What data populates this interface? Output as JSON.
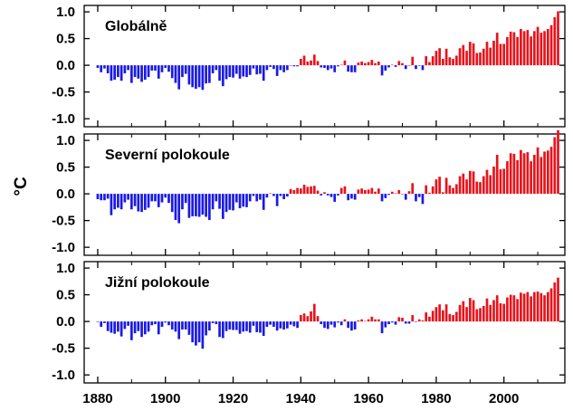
{
  "colors": {
    "positive": "#e8131b",
    "negative": "#1a1ae6",
    "axis": "#000000",
    "background": "#ffffff"
  },
  "shared": {
    "ylabel": "°C",
    "xlim": [
      1876,
      2018
    ],
    "ylim": [
      -1.15,
      1.12
    ],
    "x_ticks": [
      1880,
      1900,
      1920,
      1940,
      1960,
      1980,
      2000
    ],
    "x_tick_labels": [
      "1880",
      "1900",
      "1920",
      "1940",
      "1960",
      "1980",
      "2000"
    ],
    "y_ticks": [
      1.0,
      0.5,
      0.0,
      -0.5,
      -1.0
    ],
    "y_tick_labels": [
      "1.0",
      "0.5",
      "0.0",
      "-0.5",
      "-1.0"
    ]
  },
  "chart_data": [
    {
      "type": "bar",
      "title": "Globálně",
      "xlabel": "",
      "ylabel": "°C",
      "start_year": 1880,
      "values": [
        -0.05,
        -0.13,
        -0.06,
        -0.15,
        -0.29,
        -0.27,
        -0.22,
        -0.29,
        -0.15,
        -0.09,
        -0.33,
        -0.22,
        -0.25,
        -0.31,
        -0.27,
        -0.22,
        -0.1,
        -0.1,
        -0.25,
        -0.13,
        -0.05,
        -0.12,
        -0.24,
        -0.33,
        -0.45,
        -0.22,
        -0.16,
        -0.36,
        -0.41,
        -0.44,
        -0.41,
        -0.46,
        -0.34,
        -0.33,
        -0.15,
        -0.09,
        -0.29,
        -0.39,
        -0.26,
        -0.22,
        -0.23,
        -0.16,
        -0.25,
        -0.21,
        -0.22,
        -0.18,
        -0.06,
        -0.17,
        -0.16,
        -0.29,
        -0.09,
        -0.03,
        -0.07,
        -0.2,
        -0.09,
        -0.13,
        -0.09,
        0.0,
        -0.02,
        -0.02,
        0.12,
        0.18,
        0.07,
        0.09,
        0.2,
        0.08,
        -0.04,
        -0.05,
        -0.09,
        -0.06,
        -0.13,
        -0.02,
        0.01,
        0.09,
        -0.12,
        -0.13,
        -0.13,
        0.05,
        0.07,
        0.04,
        0.06,
        0.1,
        0.04,
        0.07,
        -0.19,
        -0.1,
        -0.04,
        0.01,
        -0.03,
        0.08,
        0.04,
        -0.07,
        0.0,
        0.16,
        -0.07,
        -0.01,
        -0.09,
        0.17,
        0.06,
        0.17,
        0.27,
        0.32,
        0.12,
        0.31,
        0.15,
        0.12,
        0.18,
        0.32,
        0.38,
        0.27,
        0.44,
        0.41,
        0.23,
        0.24,
        0.31,
        0.44,
        0.33,
        0.46,
        0.61,
        0.4,
        0.4,
        0.53,
        0.63,
        0.62,
        0.53,
        0.68,
        0.64,
        0.66,
        0.54,
        0.64,
        0.72,
        0.61,
        0.64,
        0.68,
        0.75,
        0.9,
        1.01
      ]
    },
    {
      "type": "bar",
      "title": "Severní polokoule",
      "xlabel": "",
      "ylabel": "°C",
      "start_year": 1880,
      "values": [
        -0.1,
        -0.12,
        -0.12,
        -0.09,
        -0.4,
        -0.29,
        -0.26,
        -0.29,
        -0.16,
        -0.11,
        -0.29,
        -0.23,
        -0.33,
        -0.34,
        -0.3,
        -0.26,
        -0.14,
        -0.14,
        -0.25,
        -0.16,
        -0.07,
        -0.17,
        -0.34,
        -0.49,
        -0.55,
        -0.29,
        -0.17,
        -0.45,
        -0.42,
        -0.42,
        -0.43,
        -0.39,
        -0.43,
        -0.49,
        -0.29,
        -0.14,
        -0.28,
        -0.47,
        -0.34,
        -0.3,
        -0.31,
        -0.16,
        -0.27,
        -0.24,
        -0.25,
        -0.14,
        -0.04,
        -0.14,
        -0.11,
        -0.3,
        -0.07,
        0.01,
        -0.04,
        -0.23,
        -0.04,
        -0.1,
        -0.05,
        0.09,
        0.07,
        0.11,
        0.1,
        0.17,
        0.13,
        0.14,
        0.15,
        0.06,
        -0.03,
        0.03,
        -0.03,
        -0.06,
        -0.15,
        -0.03,
        0.11,
        0.14,
        -0.12,
        -0.09,
        -0.11,
        0.08,
        0.1,
        0.07,
        0.08,
        0.11,
        0.04,
        0.1,
        -0.14,
        -0.08,
        -0.02,
        0.04,
        0.01,
        0.07,
        0.0,
        -0.11,
        0.05,
        0.2,
        -0.14,
        -0.06,
        -0.19,
        0.16,
        0.02,
        0.14,
        0.27,
        0.32,
        0.03,
        0.3,
        0.16,
        0.11,
        0.18,
        0.33,
        0.38,
        0.27,
        0.43,
        0.42,
        0.23,
        0.22,
        0.33,
        0.45,
        0.35,
        0.51,
        0.73,
        0.46,
        0.47,
        0.61,
        0.76,
        0.75,
        0.63,
        0.82,
        0.76,
        0.78,
        0.61,
        0.73,
        0.87,
        0.69,
        0.79,
        0.81,
        0.88,
        1.06,
        1.19
      ]
    },
    {
      "type": "bar",
      "title": "Jižní polokoule",
      "xlabel": "",
      "ylabel": "°C",
      "start_year": 1880,
      "values": [
        -0.01,
        -0.1,
        -0.03,
        -0.18,
        -0.21,
        -0.23,
        -0.19,
        -0.28,
        -0.14,
        -0.08,
        -0.35,
        -0.22,
        -0.18,
        -0.29,
        -0.24,
        -0.19,
        -0.07,
        -0.05,
        -0.24,
        -0.1,
        -0.02,
        -0.07,
        -0.15,
        -0.19,
        -0.33,
        -0.15,
        -0.15,
        -0.25,
        -0.39,
        -0.45,
        -0.39,
        -0.51,
        -0.26,
        -0.17,
        -0.03,
        -0.05,
        -0.29,
        -0.31,
        -0.18,
        -0.15,
        -0.16,
        -0.16,
        -0.23,
        -0.19,
        -0.18,
        -0.21,
        -0.08,
        -0.2,
        -0.21,
        -0.27,
        -0.1,
        -0.06,
        -0.1,
        -0.17,
        -0.13,
        -0.15,
        -0.13,
        -0.06,
        -0.09,
        -0.12,
        0.12,
        0.15,
        0.1,
        0.19,
        0.33,
        0.1,
        -0.05,
        -0.12,
        -0.14,
        -0.06,
        -0.11,
        -0.02,
        -0.07,
        0.04,
        -0.12,
        -0.17,
        -0.15,
        0.02,
        0.04,
        0.01,
        0.04,
        0.09,
        0.04,
        0.04,
        -0.22,
        -0.11,
        -0.05,
        -0.02,
        -0.06,
        0.08,
        0.07,
        -0.04,
        -0.04,
        0.12,
        -0.01,
        0.04,
        0.02,
        0.17,
        0.09,
        0.2,
        0.27,
        0.32,
        0.21,
        0.32,
        0.14,
        0.12,
        0.18,
        0.31,
        0.38,
        0.27,
        0.44,
        0.4,
        0.23,
        0.25,
        0.29,
        0.43,
        0.31,
        0.4,
        0.49,
        0.34,
        0.33,
        0.45,
        0.5,
        0.49,
        0.42,
        0.54,
        0.52,
        0.55,
        0.47,
        0.55,
        0.56,
        0.53,
        0.49,
        0.55,
        0.62,
        0.73,
        0.82
      ]
    }
  ]
}
